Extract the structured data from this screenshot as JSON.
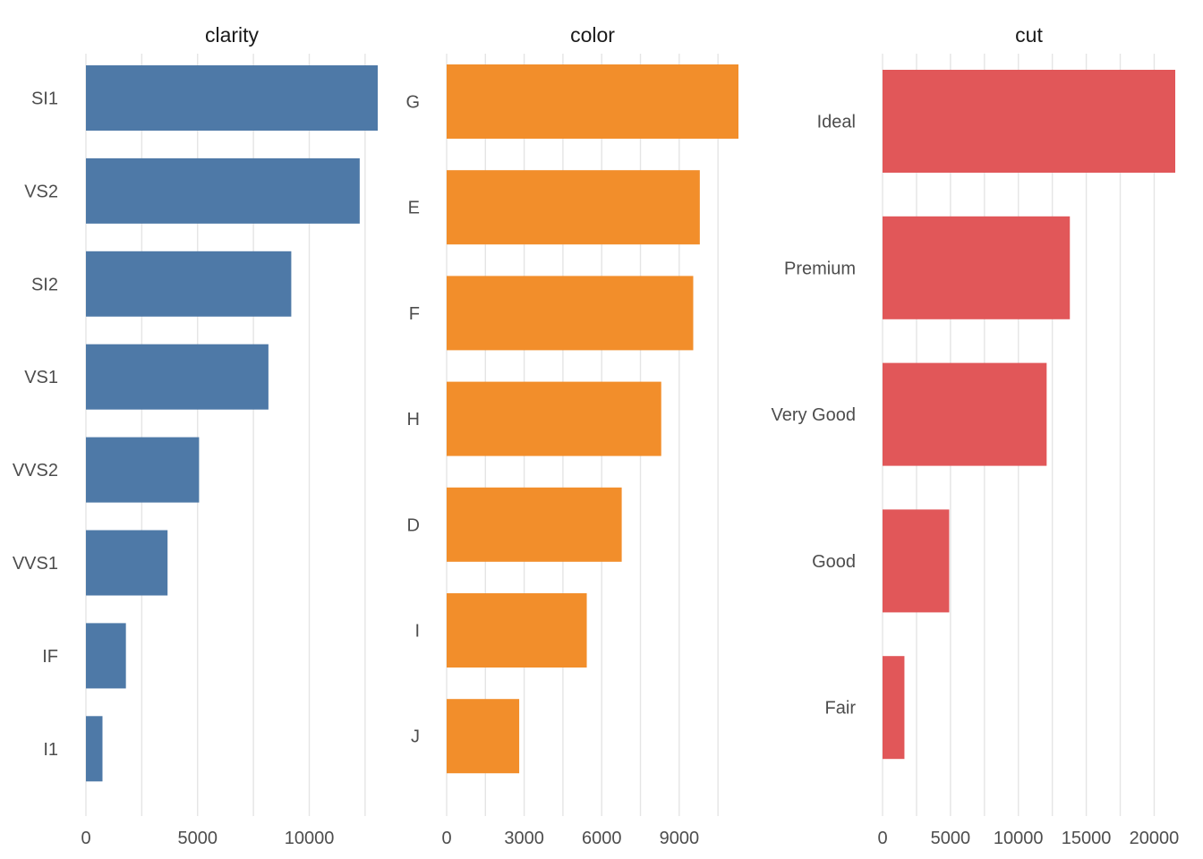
{
  "chart_data": [
    {
      "type": "bar",
      "orientation": "horizontal",
      "title": "clarity",
      "color": "#4E79A7",
      "categories": [
        "SI1",
        "VS2",
        "SI2",
        "VS1",
        "VVS2",
        "VVS1",
        "IF",
        "I1"
      ],
      "values": [
        13065,
        12258,
        9194,
        8171,
        5066,
        3655,
        1790,
        741
      ],
      "xticks": [
        0,
        5000,
        10000
      ],
      "xlim": [
        0,
        13065
      ],
      "xlabel": "",
      "ylabel": "",
      "grid": true
    },
    {
      "type": "bar",
      "orientation": "horizontal",
      "title": "color",
      "color": "#F28E2B",
      "categories": [
        "G",
        "E",
        "F",
        "H",
        "D",
        "I",
        "J"
      ],
      "values": [
        11292,
        9797,
        9542,
        8304,
        6775,
        5422,
        2808
      ],
      "xticks": [
        0,
        3000,
        6000,
        9000
      ],
      "xlim": [
        0,
        11292
      ],
      "xlabel": "",
      "ylabel": "",
      "grid": true
    },
    {
      "type": "bar",
      "orientation": "horizontal",
      "title": "cut",
      "color": "#E15759",
      "categories": [
        "Ideal",
        "Premium",
        "Very Good",
        "Good",
        "Fair"
      ],
      "values": [
        21551,
        13791,
        12082,
        4906,
        1610
      ],
      "xticks": [
        0,
        5000,
        10000,
        15000,
        20000
      ],
      "xlim": [
        0,
        21551
      ],
      "xlabel": "",
      "ylabel": "",
      "grid": true
    }
  ]
}
